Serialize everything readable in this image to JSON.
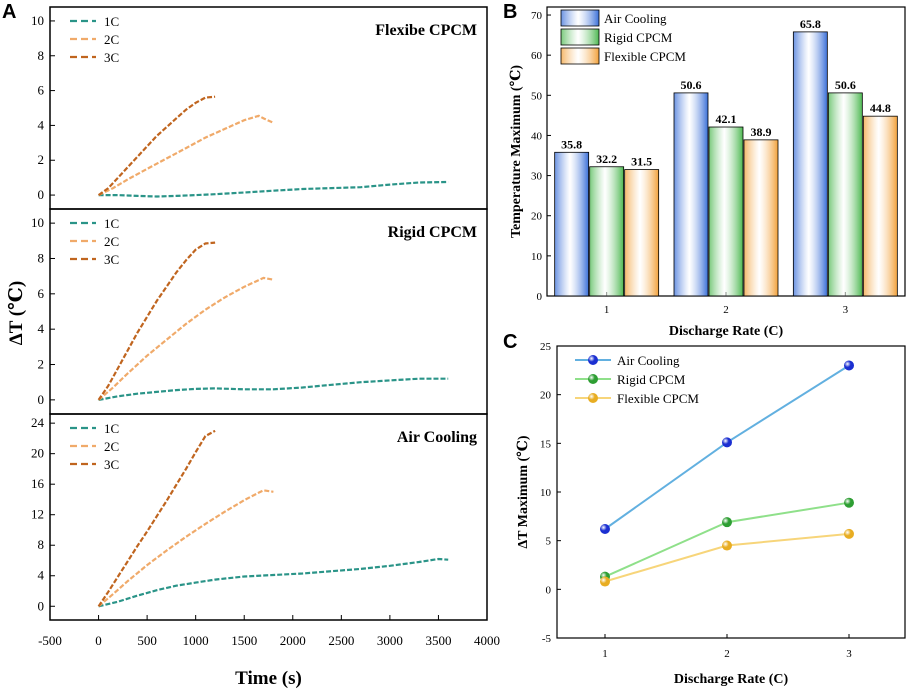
{
  "chart_data": [
    {
      "panel": "A",
      "type": "line",
      "xlabel": "Time (s)",
      "ylabel": "ΔT (℃)",
      "xlim": [
        -500,
        4000
      ],
      "xticks": [
        -500,
        0,
        500,
        1000,
        1500,
        2000,
        2500,
        3000,
        3500,
        4000
      ],
      "subplots": [
        {
          "title": "Flexibe CPCM",
          "ylim": [
            -0.8,
            10.8
          ],
          "yticks": [
            0,
            2,
            4,
            6,
            8,
            10
          ],
          "series": [
            {
              "name": "1C",
              "color": "#2a9488",
              "x": [
                0,
                200,
                400,
                600,
                800,
                1000,
                1200,
                1500,
                1800,
                2100,
                2400,
                2700,
                3000,
                3300,
                3600
              ],
              "y": [
                0,
                0,
                -0.05,
                -0.08,
                -0.05,
                0,
                0.05,
                0.15,
                0.25,
                0.35,
                0.4,
                0.45,
                0.6,
                0.72,
                0.75
              ]
            },
            {
              "name": "2C",
              "color": "#f0aa6a",
              "x": [
                0,
                150,
                300,
                500,
                700,
                900,
                1100,
                1300,
                1500,
                1650,
                1700,
                1800
              ],
              "y": [
                0,
                0.4,
                0.9,
                1.5,
                2.1,
                2.7,
                3.3,
                3.8,
                4.3,
                4.55,
                4.4,
                4.15
              ]
            },
            {
              "name": "3C",
              "color": "#c0651f",
              "x": [
                0,
                100,
                200,
                300,
                400,
                500,
                600,
                700,
                800,
                900,
                1000,
                1100,
                1200
              ],
              "y": [
                0,
                0.4,
                1.0,
                1.6,
                2.2,
                2.8,
                3.4,
                3.9,
                4.4,
                4.9,
                5.3,
                5.6,
                5.65
              ]
            }
          ]
        },
        {
          "title": "Rigid CPCM",
          "ylim": [
            -0.8,
            10.8
          ],
          "yticks": [
            0,
            2,
            4,
            6,
            8,
            10
          ],
          "series": [
            {
              "name": "1C",
              "color": "#2a9488",
              "x": [
                0,
                200,
                400,
                600,
                800,
                1000,
                1200,
                1500,
                1800,
                2100,
                2400,
                2700,
                3000,
                3300,
                3600
              ],
              "y": [
                0,
                0.2,
                0.35,
                0.45,
                0.55,
                0.62,
                0.65,
                0.6,
                0.6,
                0.7,
                0.85,
                1.0,
                1.1,
                1.2,
                1.2
              ]
            },
            {
              "name": "2C",
              "color": "#f0aa6a",
              "x": [
                0,
                150,
                300,
                500,
                700,
                900,
                1100,
                1300,
                1500,
                1700,
                1800
              ],
              "y": [
                0,
                0.7,
                1.5,
                2.5,
                3.4,
                4.3,
                5.1,
                5.8,
                6.4,
                6.9,
                6.8
              ]
            },
            {
              "name": "3C",
              "color": "#c0651f",
              "x": [
                0,
                100,
                200,
                300,
                400,
                500,
                600,
                700,
                800,
                900,
                1000,
                1100,
                1200
              ],
              "y": [
                0,
                0.8,
                1.8,
                2.8,
                3.8,
                4.7,
                5.6,
                6.4,
                7.2,
                7.9,
                8.5,
                8.85,
                8.9
              ]
            }
          ]
        },
        {
          "title": "Air Cooling",
          "ylim": [
            -1.8,
            25.2
          ],
          "yticks": [
            0,
            4,
            8,
            12,
            16,
            20,
            24
          ],
          "series": [
            {
              "name": "1C",
              "color": "#2a9488",
              "x": [
                0,
                200,
                400,
                600,
                800,
                1000,
                1200,
                1500,
                1800,
                2100,
                2400,
                2700,
                3000,
                3300,
                3500,
                3600
              ],
              "y": [
                0,
                0.6,
                1.4,
                2.1,
                2.7,
                3.1,
                3.5,
                3.9,
                4.1,
                4.3,
                4.6,
                4.9,
                5.3,
                5.8,
                6.2,
                6.1
              ]
            },
            {
              "name": "2C",
              "color": "#f0aa6a",
              "x": [
                0,
                150,
                300,
                500,
                700,
                900,
                1100,
                1300,
                1500,
                1650,
                1700,
                1800
              ],
              "y": [
                0,
                1.6,
                3.3,
                5.4,
                7.3,
                9.1,
                10.8,
                12.4,
                13.9,
                14.9,
                15.2,
                15.0
              ]
            },
            {
              "name": "3C",
              "color": "#c0651f",
              "x": [
                0,
                100,
                200,
                300,
                400,
                500,
                600,
                700,
                800,
                900,
                1000,
                1100,
                1200
              ],
              "y": [
                0,
                1.9,
                3.9,
                5.9,
                7.9,
                9.8,
                11.8,
                13.8,
                15.9,
                18.0,
                20.2,
                22.3,
                23.0
              ]
            }
          ]
        }
      ]
    },
    {
      "panel": "B",
      "type": "bar",
      "xlabel": "Discharge Rate (C)",
      "ylabel": "Temperature Maximum (℃)",
      "ylim": [
        0,
        72
      ],
      "yticks": [
        0,
        10,
        20,
        30,
        40,
        50,
        60,
        70
      ],
      "categories": [
        "1",
        "2",
        "3"
      ],
      "series": [
        {
          "name": "Air Cooling",
          "color": "#3a6fd8",
          "values": [
            35.8,
            50.6,
            65.8
          ]
        },
        {
          "name": "Rigid CPCM",
          "color": "#4db851",
          "values": [
            32.2,
            42.1,
            50.6
          ]
        },
        {
          "name": "Flexible CPCM",
          "color": "#f2a13a",
          "values": [
            31.5,
            38.9,
            44.8
          ]
        }
      ],
      "value_labels": [
        [
          "35.8",
          "32.2",
          "31.5"
        ],
        [
          "50.6",
          "42.1",
          "38.9"
        ],
        [
          "65.8",
          "50.6",
          "44.8"
        ]
      ]
    },
    {
      "panel": "C",
      "type": "line",
      "xlabel": "Discharge Rate (C)",
      "ylabel": "ΔT Maximum (℃)",
      "ylim": [
        -5,
        25
      ],
      "yticks": [
        -5,
        0,
        5,
        10,
        15,
        20,
        25
      ],
      "categories": [
        "1",
        "2",
        "3"
      ],
      "series": [
        {
          "name": "Air Cooling",
          "color": "#62b0e0",
          "marker": "#1b2fd1",
          "values": [
            6.2,
            15.1,
            23.0
          ]
        },
        {
          "name": "Rigid CPCM",
          "color": "#8fe08a",
          "marker": "#2e9e33",
          "values": [
            1.3,
            6.9,
            8.9
          ]
        },
        {
          "name": "Flexible CPCM",
          "color": "#f7d57a",
          "marker": "#e8ad22",
          "values": [
            0.8,
            4.5,
            5.7
          ]
        }
      ]
    }
  ]
}
